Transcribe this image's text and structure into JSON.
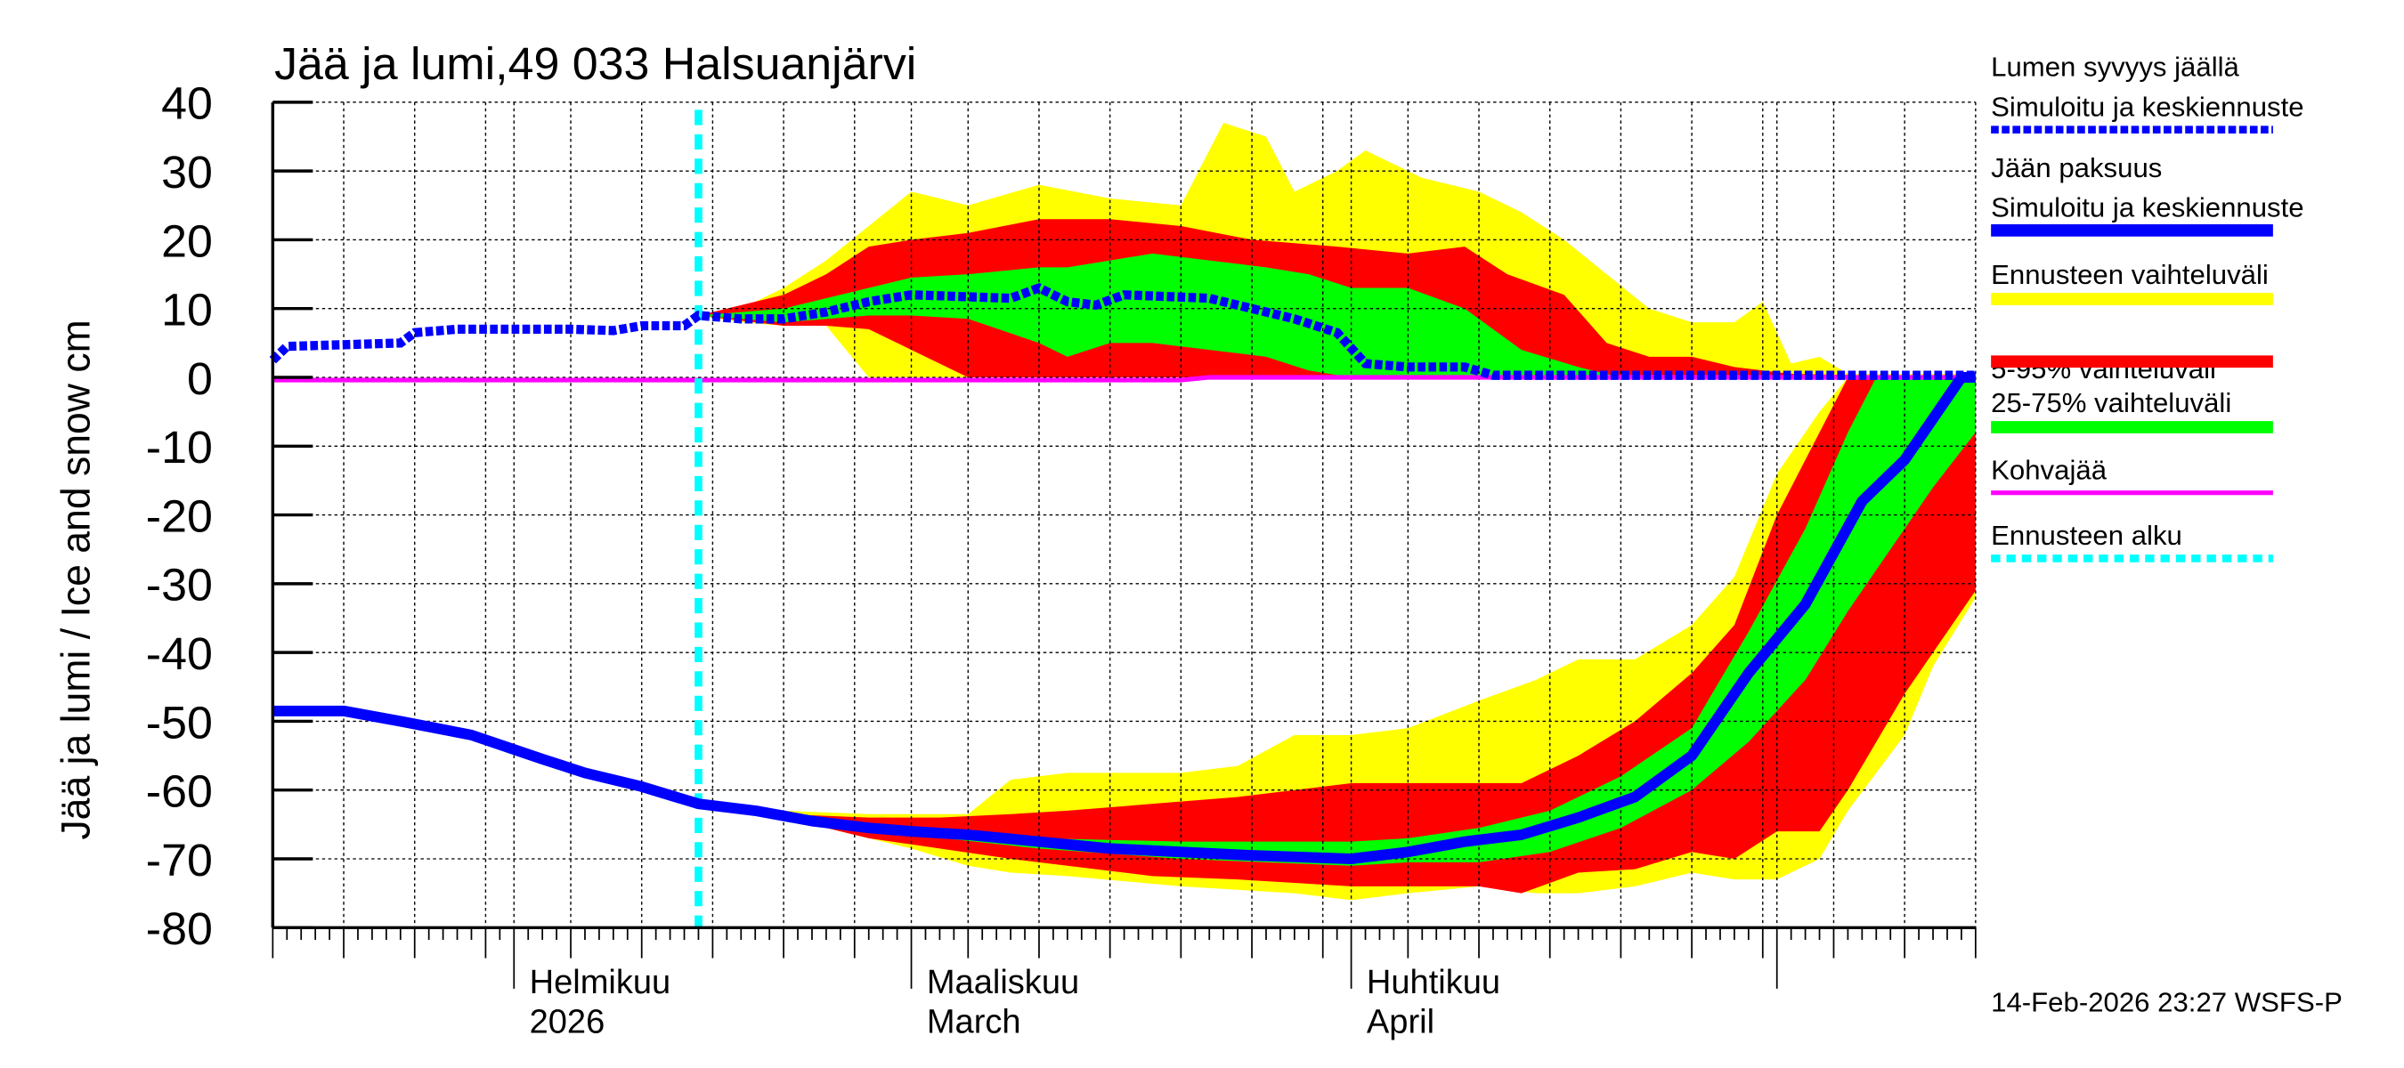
{
  "chart_data": {
    "type": "area",
    "title": "Jää ja lumi,49 033 Halsuanjärvi",
    "ylabel": "Jää ja lumi / Ice and snow    cm",
    "ylim": [
      -80,
      40
    ],
    "yticks": [
      40,
      30,
      20,
      10,
      0,
      -10,
      -20,
      -30,
      -40,
      -50,
      -60,
      -70,
      -80
    ],
    "xlim": [
      "2026-01-15",
      "2026-05-15"
    ],
    "grid": true,
    "legend_position": "right",
    "month_labels": [
      {
        "date": "2026-02-01",
        "line1": "Helmikuu",
        "line2": "2026"
      },
      {
        "date": "2026-03-01",
        "line1": "Maaliskuu",
        "line2": "March"
      },
      {
        "date": "2026-04-01",
        "line1": "Huhtikuu",
        "line2": "April"
      }
    ],
    "forecast_start": "2026-02-14",
    "footer": "14-Feb-2026 23:27 WSFS-P",
    "colors": {
      "snow": "#0000ff",
      "ice": "#0000ff",
      "range": "#ffff00",
      "p5_95": "#ff0000",
      "p25_75": "#00ff00",
      "slush": "#ff00ff",
      "forecast_start": "#00ffff"
    },
    "legend": [
      {
        "line1": "Lumen syvyys jäällä",
        "line2": "Simuloitu ja keskiennuste",
        "style": "dashed-blue"
      },
      {
        "line1": "Jään paksuus",
        "line2": "Simuloitu ja keskiennuste",
        "style": "solid-blue"
      },
      {
        "line1": "Ennusteen vaihteluväli",
        "style": "yellow"
      },
      {
        "line1": "5-95% vaihteluväli",
        "style": "red"
      },
      {
        "line1": "25-75% vaihteluväli",
        "style": "green"
      },
      {
        "line1": "Kohvajää",
        "style": "magenta"
      },
      {
        "line1": "Ennusteen alku",
        "style": "cyan-dashed"
      }
    ],
    "snow_mean": [
      [
        "2026-01-15",
        2.5
      ],
      [
        "2026-01-16",
        4.5
      ],
      [
        "2026-01-24",
        5
      ],
      [
        "2026-01-25",
        6.5
      ],
      [
        "2026-01-28",
        7
      ],
      [
        "2026-02-05",
        7
      ],
      [
        "2026-02-08",
        6.8
      ],
      [
        "2026-02-10",
        7.5
      ],
      [
        "2026-02-13",
        7.5
      ],
      [
        "2026-02-14",
        9
      ],
      [
        "2026-02-17",
        8.5
      ],
      [
        "2026-02-20",
        8.5
      ],
      [
        "2026-02-23",
        9.5
      ],
      [
        "2026-02-26",
        11
      ],
      [
        "2026-03-01",
        12
      ],
      [
        "2026-03-08",
        11.5
      ],
      [
        "2026-03-10",
        13
      ],
      [
        "2026-03-12",
        11
      ],
      [
        "2026-03-14",
        10.5
      ],
      [
        "2026-03-16",
        12
      ],
      [
        "2026-03-22",
        11.5
      ],
      [
        "2026-03-25",
        10
      ],
      [
        "2026-03-28",
        8.5
      ],
      [
        "2026-03-31",
        6.5
      ],
      [
        "2026-04-02",
        2
      ],
      [
        "2026-04-05",
        1.5
      ],
      [
        "2026-04-09",
        1.5
      ],
      [
        "2026-04-11",
        0.3
      ],
      [
        "2026-05-15",
        0.3
      ]
    ],
    "ice_mean": [
      [
        "2026-01-15",
        -48.5
      ],
      [
        "2026-01-20",
        -48.5
      ],
      [
        "2026-01-24",
        -50
      ],
      [
        "2026-01-29",
        -52
      ],
      [
        "2026-02-03",
        -55.5
      ],
      [
        "2026-02-06",
        -57.5
      ],
      [
        "2026-02-10",
        -59.5
      ],
      [
        "2026-02-14",
        -62
      ],
      [
        "2026-02-18",
        -63
      ],
      [
        "2026-02-22",
        -64.5
      ],
      [
        "2026-02-26",
        -65.5
      ],
      [
        "2026-03-01",
        -66
      ],
      [
        "2026-03-05",
        -66.5
      ],
      [
        "2026-03-10",
        -67.5
      ],
      [
        "2026-03-15",
        -68.5
      ],
      [
        "2026-03-20",
        -69
      ],
      [
        "2026-03-25",
        -69.5
      ],
      [
        "2026-04-01",
        -70
      ],
      [
        "2026-04-05",
        -69
      ],
      [
        "2026-04-09",
        -67.5
      ],
      [
        "2026-04-13",
        -66.5
      ],
      [
        "2026-04-17",
        -64
      ],
      [
        "2026-04-21",
        -61
      ],
      [
        "2026-04-25",
        -55
      ],
      [
        "2026-04-29",
        -43
      ],
      [
        "2026-05-03",
        -33
      ],
      [
        "2026-05-07",
        -18
      ],
      [
        "2026-05-10",
        -12
      ],
      [
        "2026-05-12",
        -6
      ],
      [
        "2026-05-14",
        0
      ],
      [
        "2026-05-15",
        0
      ]
    ],
    "slush": [
      [
        "2026-01-15",
        -0.4
      ],
      [
        "2026-03-20",
        -0.4
      ],
      [
        "2026-03-22",
        0
      ],
      [
        "2026-05-15",
        0
      ]
    ],
    "snow_range": [
      [
        "2026-02-14",
        9,
        9
      ],
      [
        "2026-02-17",
        8,
        10
      ],
      [
        "2026-02-20",
        7.5,
        13
      ],
      [
        "2026-02-23",
        7.5,
        17
      ],
      [
        "2026-02-26",
        0,
        22
      ],
      [
        "2026-03-01",
        0,
        27
      ],
      [
        "2026-03-05",
        0,
        25
      ],
      [
        "2026-03-10",
        0,
        28
      ],
      [
        "2026-03-15",
        0,
        26
      ],
      [
        "2026-03-20",
        0,
        25
      ],
      [
        "2026-03-23",
        0,
        37
      ],
      [
        "2026-03-26",
        0,
        35
      ],
      [
        "2026-03-28",
        0,
        27
      ],
      [
        "2026-03-31",
        0,
        30
      ],
      [
        "2026-04-02",
        0,
        33
      ],
      [
        "2026-04-06",
        0,
        29
      ],
      [
        "2026-04-10",
        0,
        27
      ],
      [
        "2026-04-13",
        0,
        24
      ],
      [
        "2026-04-16",
        0,
        20
      ],
      [
        "2026-04-19",
        0,
        15
      ],
      [
        "2026-04-22",
        0,
        10
      ],
      [
        "2026-04-25",
        0,
        8
      ],
      [
        "2026-04-28",
        0,
        8
      ],
      [
        "2026-04-30",
        0,
        11
      ],
      [
        "2026-05-02",
        0,
        2
      ],
      [
        "2026-05-04",
        0,
        3
      ],
      [
        "2026-05-06",
        0,
        0.5
      ],
      [
        "2026-05-15",
        0,
        0.5
      ]
    ],
    "snow_p5_95": [
      [
        "2026-02-14",
        9,
        9
      ],
      [
        "2026-02-20",
        7.5,
        12
      ],
      [
        "2026-02-23",
        7.5,
        15
      ],
      [
        "2026-02-26",
        7,
        19
      ],
      [
        "2026-03-01",
        4,
        20
      ],
      [
        "2026-03-05",
        0,
        21
      ],
      [
        "2026-03-10",
        0,
        23
      ],
      [
        "2026-03-15",
        0,
        23
      ],
      [
        "2026-03-20",
        0,
        22
      ],
      [
        "2026-03-25",
        0,
        20
      ],
      [
        "2026-03-31",
        0,
        19
      ],
      [
        "2026-04-05",
        0,
        18
      ],
      [
        "2026-04-09",
        0,
        19
      ],
      [
        "2026-04-12",
        0,
        15
      ],
      [
        "2026-04-16",
        0,
        12
      ],
      [
        "2026-04-19",
        0,
        5
      ],
      [
        "2026-04-22",
        0,
        3
      ],
      [
        "2026-04-25",
        0,
        3
      ],
      [
        "2026-04-28",
        0,
        1.5
      ],
      [
        "2026-05-02",
        0,
        0.5
      ],
      [
        "2026-05-15",
        0,
        0
      ]
    ],
    "snow_p25_75": [
      [
        "2026-02-14",
        9,
        9
      ],
      [
        "2026-02-20",
        8,
        10
      ],
      [
        "2026-02-26",
        9,
        13
      ],
      [
        "2026-03-01",
        9,
        14.5
      ],
      [
        "2026-03-05",
        8.5,
        15
      ],
      [
        "2026-03-10",
        5,
        16
      ],
      [
        "2026-03-12",
        3,
        16
      ],
      [
        "2026-03-15",
        5,
        17
      ],
      [
        "2026-03-18",
        5,
        18
      ],
      [
        "2026-03-22",
        4,
        17
      ],
      [
        "2026-03-26",
        3,
        16
      ],
      [
        "2026-03-29",
        1,
        15
      ],
      [
        "2026-04-01",
        0,
        13
      ],
      [
        "2026-04-05",
        0,
        13
      ],
      [
        "2026-04-09",
        0,
        10
      ],
      [
        "2026-04-13",
        0,
        4
      ],
      [
        "2026-04-17",
        0,
        1.5
      ],
      [
        "2026-04-20",
        0,
        0
      ],
      [
        "2026-05-15",
        0,
        0
      ]
    ],
    "ice_range": [
      [
        "2026-02-14",
        -62,
        -62
      ],
      [
        "2026-02-20",
        -63,
        -64
      ],
      [
        "2026-02-26",
        -63.5,
        -67
      ],
      [
        "2026-03-01",
        -63.5,
        -68.5
      ],
      [
        "2026-03-05",
        -63.5,
        -71
      ],
      [
        "2026-03-08",
        -58.5,
        -72
      ],
      [
        "2026-03-12",
        -57.5,
        -72.5
      ],
      [
        "2026-03-20",
        -57.5,
        -74
      ],
      [
        "2026-03-24",
        -56.5,
        -74.5
      ],
      [
        "2026-03-28",
        -52,
        -75
      ],
      [
        "2026-04-01",
        -52,
        -76
      ],
      [
        "2026-04-05",
        -51,
        -75
      ],
      [
        "2026-04-10",
        -47,
        -74
      ],
      [
        "2026-04-14",
        -44,
        -75
      ],
      [
        "2026-04-17",
        -41,
        -75
      ],
      [
        "2026-04-21",
        -41,
        -74
      ],
      [
        "2026-04-25",
        -36,
        -72
      ],
      [
        "2026-04-28",
        -29,
        -73
      ],
      [
        "2026-05-01",
        -14,
        -73
      ],
      [
        "2026-05-04",
        -5,
        -70
      ],
      [
        "2026-05-06",
        0,
        -63
      ],
      [
        "2026-05-10",
        0,
        -52
      ],
      [
        "2026-05-12",
        0,
        -42
      ],
      [
        "2026-05-15",
        0,
        -32
      ]
    ],
    "ice_p5_95": [
      [
        "2026-02-14",
        -62,
        -62
      ],
      [
        "2026-02-20",
        -63.5,
        -64
      ],
      [
        "2026-02-26",
        -64,
        -67
      ],
      [
        "2026-03-03",
        -64,
        -68.5
      ],
      [
        "2026-03-08",
        -63.5,
        -70
      ],
      [
        "2026-03-12",
        -63,
        -71
      ],
      [
        "2026-03-18",
        -62,
        -72.5
      ],
      [
        "2026-03-24",
        -61,
        -73
      ],
      [
        "2026-03-28",
        -60,
        -73.5
      ],
      [
        "2026-04-01",
        -59,
        -74
      ],
      [
        "2026-04-10",
        -59,
        -74
      ],
      [
        "2026-04-13",
        -59,
        -75
      ],
      [
        "2026-04-17",
        -55,
        -72
      ],
      [
        "2026-04-21",
        -50,
        -71.5
      ],
      [
        "2026-04-25",
        -43,
        -69
      ],
      [
        "2026-04-28",
        -36,
        -70
      ],
      [
        "2026-05-01",
        -20,
        -66
      ],
      [
        "2026-05-04",
        -8,
        -66
      ],
      [
        "2026-05-06",
        0,
        -60
      ],
      [
        "2026-05-10",
        0,
        -46
      ],
      [
        "2026-05-13",
        0,
        -37
      ],
      [
        "2026-05-15",
        0,
        -31
      ]
    ],
    "ice_p25_75": [
      [
        "2026-02-14",
        -62,
        -62
      ],
      [
        "2026-03-01",
        -66,
        -66.5
      ],
      [
        "2026-03-10",
        -67,
        -68.5
      ],
      [
        "2026-03-20",
        -67.5,
        -70
      ],
      [
        "2026-04-01",
        -67.5,
        -71
      ],
      [
        "2026-04-05",
        -67,
        -70.5
      ],
      [
        "2026-04-10",
        -65.5,
        -70.5
      ],
      [
        "2026-04-15",
        -63,
        -69
      ],
      [
        "2026-04-20",
        -58,
        -65.5
      ],
      [
        "2026-04-25",
        -51,
        -60
      ],
      [
        "2026-04-29",
        -37,
        -53
      ],
      [
        "2026-05-03",
        -22,
        -44
      ],
      [
        "2026-05-06",
        -8,
        -34
      ],
      [
        "2026-05-08",
        0,
        -28
      ],
      [
        "2026-05-12",
        0,
        -16
      ],
      [
        "2026-05-15",
        0,
        -8
      ]
    ]
  }
}
